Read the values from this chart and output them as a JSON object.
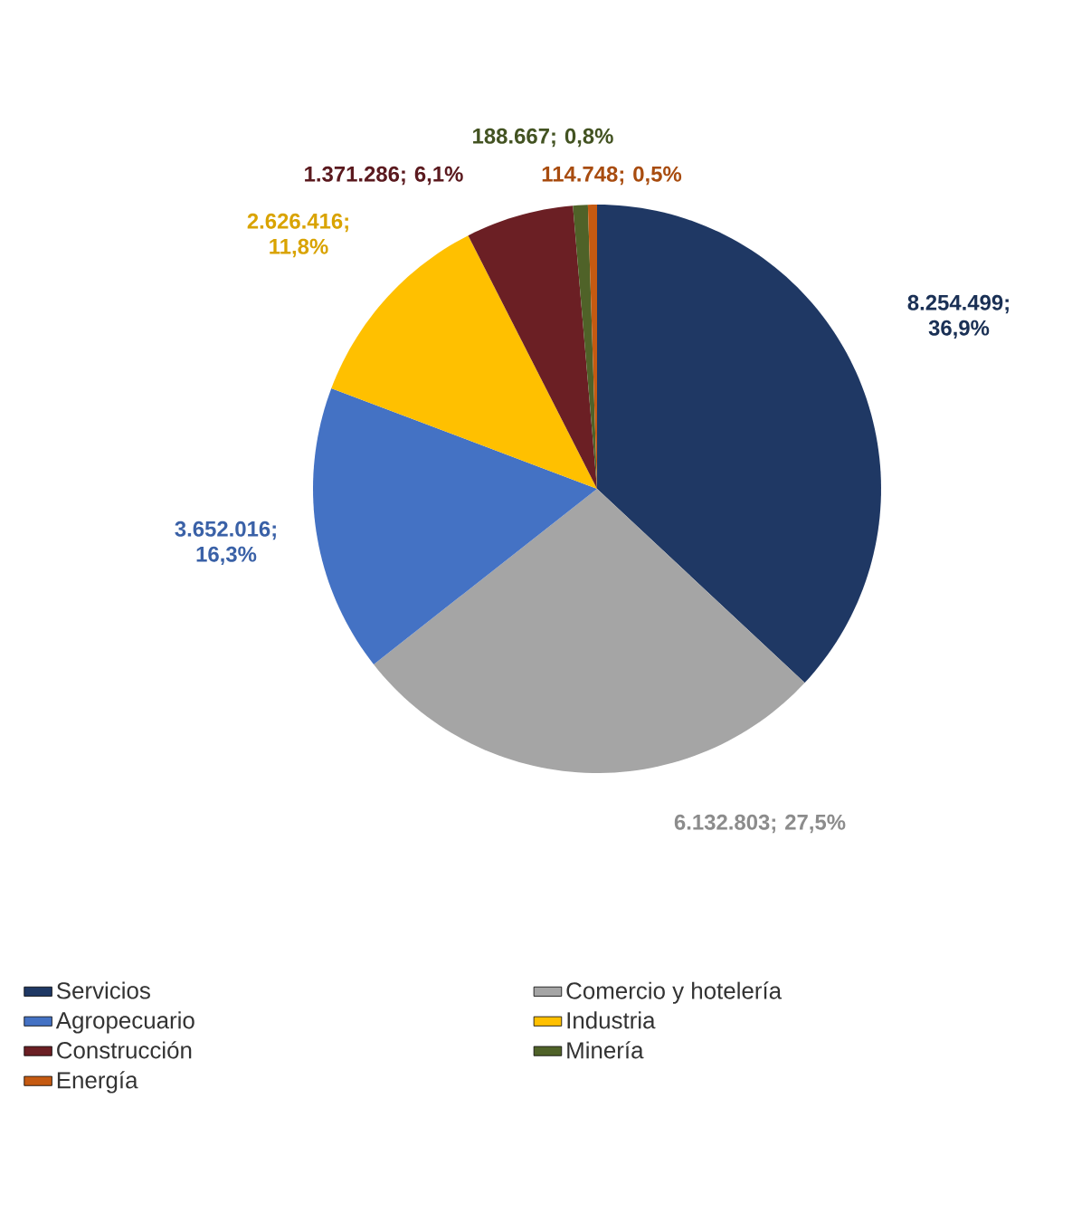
{
  "chart_data": {
    "type": "pie",
    "categories": [
      "Servicios",
      "Comercio y hotelería",
      "Agropecuario",
      "Industria",
      "Construcción",
      "Minería",
      "Energía"
    ],
    "values": [
      8254499,
      6132803,
      3652016,
      2626416,
      1371286,
      188667,
      114748
    ],
    "value_labels": [
      "8.254.499; 36,9%",
      "6.132.803; 27,5%",
      "3.652.016; 16,3%",
      "2.626.416; 11,8%",
      "1.371.286; 6,1%",
      "188.667; 0,8%",
      "114.748; 0,5%"
    ],
    "colors": [
      "#1f3864",
      "#a5a5a5",
      "#4472c4",
      "#ffc000",
      "#6b1f24",
      "#4f6228",
      "#c55a11"
    ],
    "legend": "bottom"
  }
}
